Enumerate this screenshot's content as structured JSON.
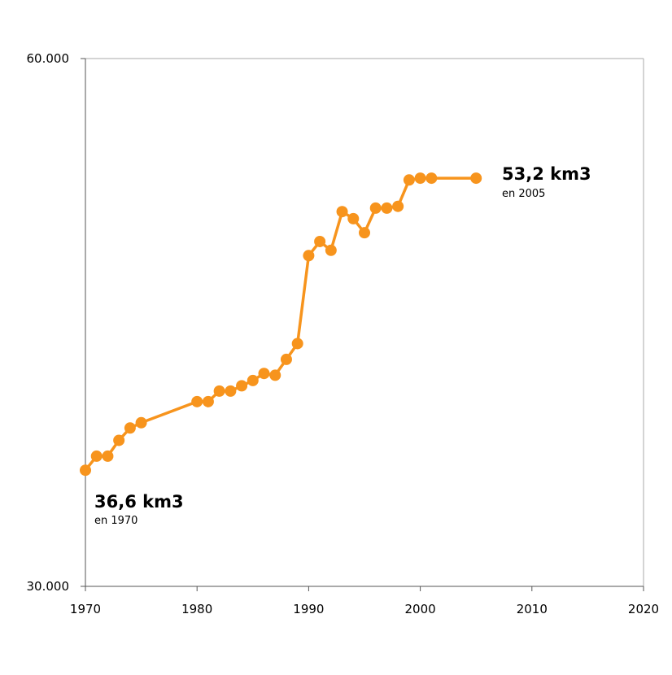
{
  "colors": {
    "series": "#f7941d",
    "axis": "#555555",
    "frame": "#aaaaaa"
  },
  "chart_data": {
    "type": "line",
    "title": "",
    "xlabel": "",
    "ylabel": "",
    "xlim": [
      1970,
      2020
    ],
    "ylim": [
      30000,
      60000
    ],
    "x_ticks": [
      1970,
      1980,
      1990,
      2000,
      2010,
      2020
    ],
    "x_tick_labels": [
      "1970",
      "1980",
      "1990",
      "2000",
      "2010",
      "2020"
    ],
    "y_ticks": [
      30000,
      60000
    ],
    "y_tick_labels": [
      "30.000",
      "60.000"
    ],
    "grid": false,
    "legend": "none",
    "series": [
      {
        "x": [
          1970,
          1971,
          1972,
          1973,
          1974,
          1975,
          1980,
          1981,
          1982,
          1983,
          1984,
          1985,
          1986,
          1987,
          1988,
          1989,
          1990,
          1991,
          1992,
          1993,
          1994,
          1995,
          1996,
          1997,
          1998,
          1999,
          2000,
          2001,
          2005
        ],
        "y": [
          36600,
          37400,
          37400,
          38300,
          39000,
          39300,
          40500,
          40500,
          41100,
          41100,
          41400,
          41700,
          42100,
          42000,
          42900,
          43800,
          48800,
          49600,
          49100,
          51300,
          50900,
          50100,
          51500,
          51500,
          51600,
          53100,
          53200,
          53200,
          53200
        ]
      }
    ],
    "annotations": [
      {
        "value": "36,6 km3",
        "sub": "en 1970"
      },
      {
        "value": "53,2 km3",
        "sub": "en 2005"
      }
    ]
  }
}
